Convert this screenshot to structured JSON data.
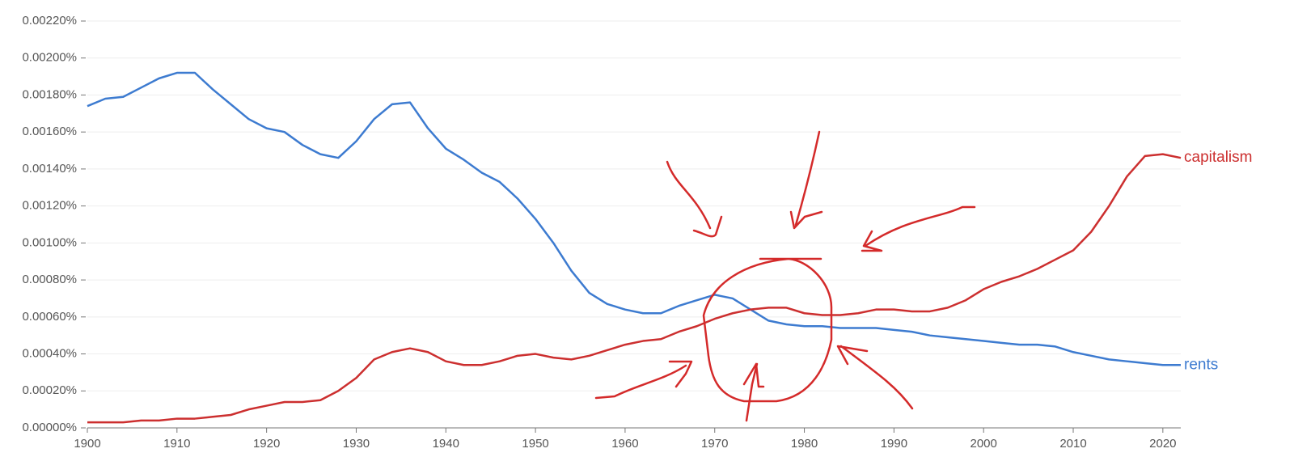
{
  "chart_data": {
    "type": "line",
    "x": [
      1900,
      1902,
      1904,
      1906,
      1908,
      1910,
      1912,
      1914,
      1916,
      1918,
      1920,
      1922,
      1924,
      1926,
      1928,
      1930,
      1932,
      1934,
      1936,
      1938,
      1940,
      1942,
      1944,
      1946,
      1948,
      1950,
      1952,
      1954,
      1956,
      1958,
      1960,
      1962,
      1964,
      1966,
      1968,
      1970,
      1972,
      1974,
      1976,
      1978,
      1980,
      1982,
      1984,
      1986,
      1988,
      1990,
      1992,
      1994,
      1996,
      1998,
      2000,
      2002,
      2004,
      2006,
      2008,
      2010,
      2012,
      2014,
      2016,
      2018,
      2020,
      2022
    ],
    "series": [
      {
        "name": "rents",
        "color": "#3d7bd0",
        "values": [
          0.00174,
          0.00178,
          0.00179,
          0.00184,
          0.00189,
          0.00192,
          0.00192,
          0.00183,
          0.00175,
          0.00167,
          0.00162,
          0.0016,
          0.00153,
          0.00148,
          0.00146,
          0.00155,
          0.00167,
          0.00175,
          0.00176,
          0.00162,
          0.00151,
          0.00145,
          0.00138,
          0.00133,
          0.00124,
          0.00113,
          0.001,
          0.00085,
          0.00073,
          0.00067,
          0.00064,
          0.00062,
          0.00062,
          0.00066,
          0.00069,
          0.00072,
          0.0007,
          0.00064,
          0.00058,
          0.00056,
          0.00055,
          0.00055,
          0.00054,
          0.00054,
          0.00054,
          0.00053,
          0.00052,
          0.0005,
          0.00049,
          0.00048,
          0.00047,
          0.00046,
          0.00045,
          0.00045,
          0.00044,
          0.00041,
          0.00039,
          0.00037,
          0.00036,
          0.00035,
          0.00034,
          0.00034
        ]
      },
      {
        "name": "capitalism",
        "color": "#cc2f2f",
        "values": [
          3e-05,
          3e-05,
          3e-05,
          4e-05,
          4e-05,
          5e-05,
          5e-05,
          6e-05,
          7e-05,
          0.0001,
          0.00012,
          0.00014,
          0.00014,
          0.00015,
          0.0002,
          0.00027,
          0.00037,
          0.00041,
          0.00043,
          0.00041,
          0.00036,
          0.00034,
          0.00034,
          0.00036,
          0.00039,
          0.0004,
          0.00038,
          0.00037,
          0.00039,
          0.00042,
          0.00045,
          0.00047,
          0.00048,
          0.00052,
          0.00055,
          0.00059,
          0.00062,
          0.00064,
          0.00065,
          0.00065,
          0.00062,
          0.00061,
          0.00061,
          0.00062,
          0.00064,
          0.00064,
          0.00063,
          0.00063,
          0.00065,
          0.00069,
          0.00075,
          0.00079,
          0.00082,
          0.00086,
          0.00091,
          0.00096,
          0.00106,
          0.0012,
          0.00136,
          0.00147,
          0.00148,
          0.00146
        ]
      }
    ],
    "xlim": [
      1900,
      2022
    ],
    "xticks": [
      1900,
      1910,
      1920,
      1930,
      1940,
      1950,
      1960,
      1970,
      1980,
      1990,
      2000,
      2010,
      2020
    ],
    "ylim": [
      0,
      0.0022
    ],
    "yticks": [
      {
        "value": 0,
        "label": "0.00000%"
      },
      {
        "value": 0.0002,
        "label": "0.00020%"
      },
      {
        "value": 0.0004,
        "label": "0.00040%"
      },
      {
        "value": 0.0006,
        "label": "0.00060%"
      },
      {
        "value": 0.0008,
        "label": "0.00080%"
      },
      {
        "value": 0.001,
        "label": "0.00100%"
      },
      {
        "value": 0.0012,
        "label": "0.00120%"
      },
      {
        "value": 0.0014,
        "label": "0.00140%"
      },
      {
        "value": 0.0016,
        "label": "0.00160%"
      },
      {
        "value": 0.0018,
        "label": "0.00180%"
      },
      {
        "value": 0.002,
        "label": "0.00200%"
      },
      {
        "value": 0.0022,
        "label": "0.00220%"
      }
    ],
    "grid": true
  }
}
